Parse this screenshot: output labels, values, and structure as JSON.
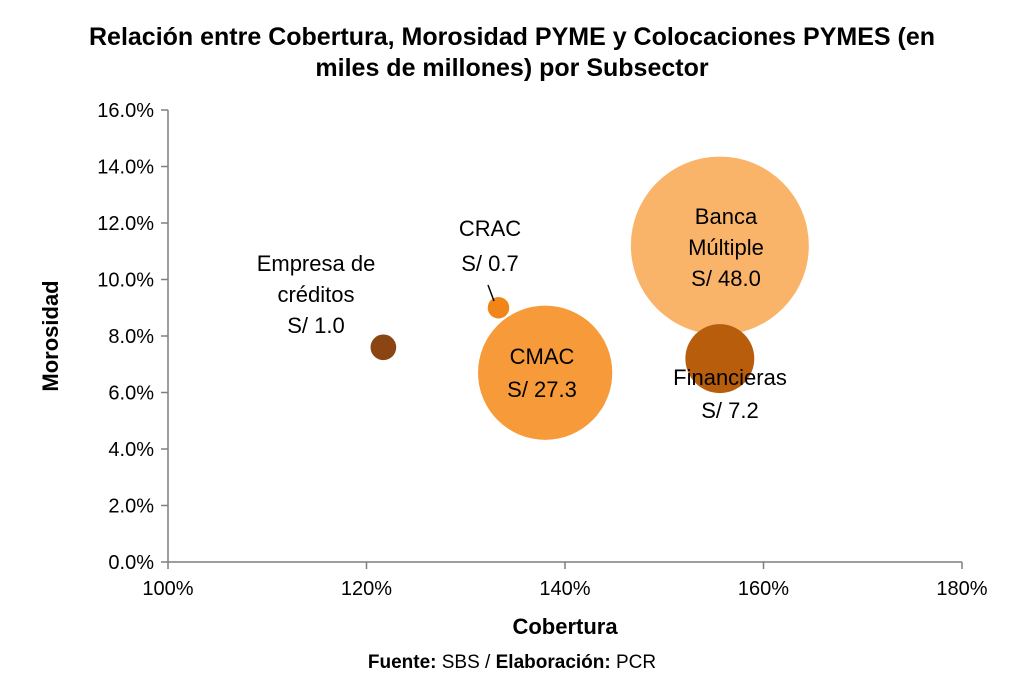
{
  "chart_data": {
    "type": "scatter",
    "subtype": "bubble",
    "title_lines": [
      "Relación entre Cobertura, Morosidad PYME y Colocaciones PYMES (en",
      "miles de millones) por Subsector"
    ],
    "xlabel": "Cobertura",
    "ylabel": "Morosidad",
    "xlim": [
      1.0,
      1.8
    ],
    "ylim": [
      0.0,
      0.16
    ],
    "x_ticks": [
      {
        "value": 1.0,
        "label": "100%"
      },
      {
        "value": 1.2,
        "label": "120%"
      },
      {
        "value": 1.4,
        "label": "140%"
      },
      {
        "value": 1.6,
        "label": "160%"
      },
      {
        "value": 1.8,
        "label": "180%"
      }
    ],
    "y_ticks": [
      {
        "value": 0.0,
        "label": "0.0%"
      },
      {
        "value": 0.02,
        "label": "2.0%"
      },
      {
        "value": 0.04,
        "label": "4.0%"
      },
      {
        "value": 0.06,
        "label": "6.0%"
      },
      {
        "value": 0.08,
        "label": "8.0%"
      },
      {
        "value": 0.1,
        "label": "10.0%"
      },
      {
        "value": 0.12,
        "label": "12.0%"
      },
      {
        "value": 0.14,
        "label": "14.0%"
      },
      {
        "value": 0.16,
        "label": "16.0%"
      }
    ],
    "grid": false,
    "legend": "none",
    "series": [
      {
        "name": "Banca Múltiple",
        "x": 1.556,
        "y": 0.112,
        "size": 48.0,
        "color": "#FAB46A",
        "label_lines": [
          "Banca",
          "Múltiple",
          "S/ 48.0"
        ]
      },
      {
        "name": "CMAC",
        "x": 1.38,
        "y": 0.067,
        "size": 27.3,
        "color": "#F79A3A",
        "label_lines": [
          "CMAC",
          "S/ 27.3"
        ]
      },
      {
        "name": "Financieras",
        "x": 1.556,
        "y": 0.072,
        "size": 7.2,
        "color": "#B85D0C",
        "label_lines": [
          "Financieras",
          "S/ 7.2"
        ]
      },
      {
        "name": "Empresa de créditos",
        "x": 1.217,
        "y": 0.076,
        "size": 1.0,
        "color": "#8B4513",
        "label_lines": [
          "Empresa de",
          "créditos",
          "S/ 1.0"
        ]
      },
      {
        "name": "CRAC",
        "x": 1.333,
        "y": 0.09,
        "size": 0.7,
        "color": "#F08519",
        "label_lines": [
          "CRAC",
          "S/ 0.7"
        ]
      }
    ]
  },
  "footer": {
    "source_label": "Fuente:",
    "source_value": " SBS / ",
    "elaboration_label": "Elaboración:",
    "elaboration_value": " PCR"
  }
}
